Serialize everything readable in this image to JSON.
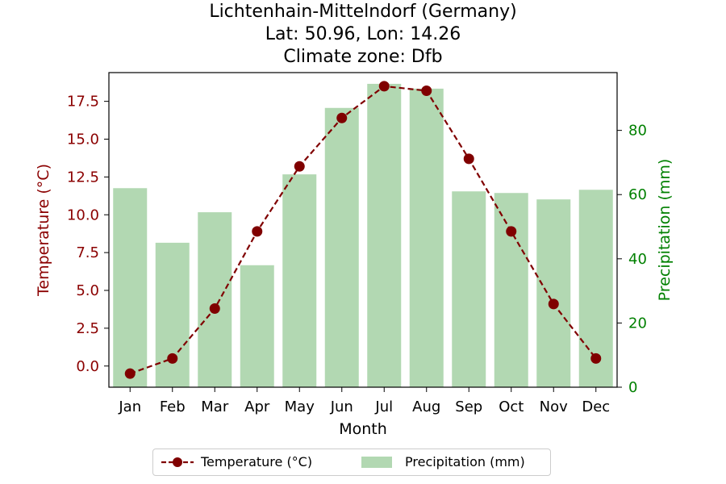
{
  "chart_data": {
    "type": "bar+line",
    "title_lines": [
      "Lichtenhain-Mittelndorf (Germany)",
      "Lat: 50.96, Lon: 14.26",
      "Climate zone: Dfb"
    ],
    "categories": [
      "Jan",
      "Feb",
      "Mar",
      "Apr",
      "May",
      "Jun",
      "Jul",
      "Aug",
      "Sep",
      "Oct",
      "Nov",
      "Dec"
    ],
    "xlabel": "Month",
    "ylabel_left": "Temperature (°C)",
    "ylabel_right": "Precipitation (mm)",
    "ylim_left": [
      -1.4,
      19.4
    ],
    "ylim_right": [
      0,
      98
    ],
    "yticks_left": [
      "0.0",
      "2.5",
      "5.0",
      "7.5",
      "10.0",
      "12.5",
      "15.0",
      "17.5"
    ],
    "yticks_right": [
      "0",
      "20",
      "40",
      "60",
      "80"
    ],
    "series": [
      {
        "name": "Temperature (°C)",
        "kind": "line",
        "axis": "left",
        "color": "#800000",
        "values": [
          -0.5,
          0.5,
          3.8,
          8.9,
          13.2,
          16.4,
          18.5,
          18.2,
          13.7,
          8.9,
          4.1,
          0.5
        ]
      },
      {
        "name": "Precipitation (mm)",
        "kind": "bar",
        "axis": "right",
        "color": "#b2d8b2",
        "values": [
          62.0,
          45.0,
          54.5,
          38.0,
          66.3,
          87.0,
          94.5,
          93.0,
          61.0,
          60.5,
          58.5,
          61.5
        ]
      }
    ],
    "colors": {
      "left_axis": "#8b0000",
      "right_axis": "#008000"
    },
    "grid": false,
    "legend_position": "bottom-center"
  }
}
